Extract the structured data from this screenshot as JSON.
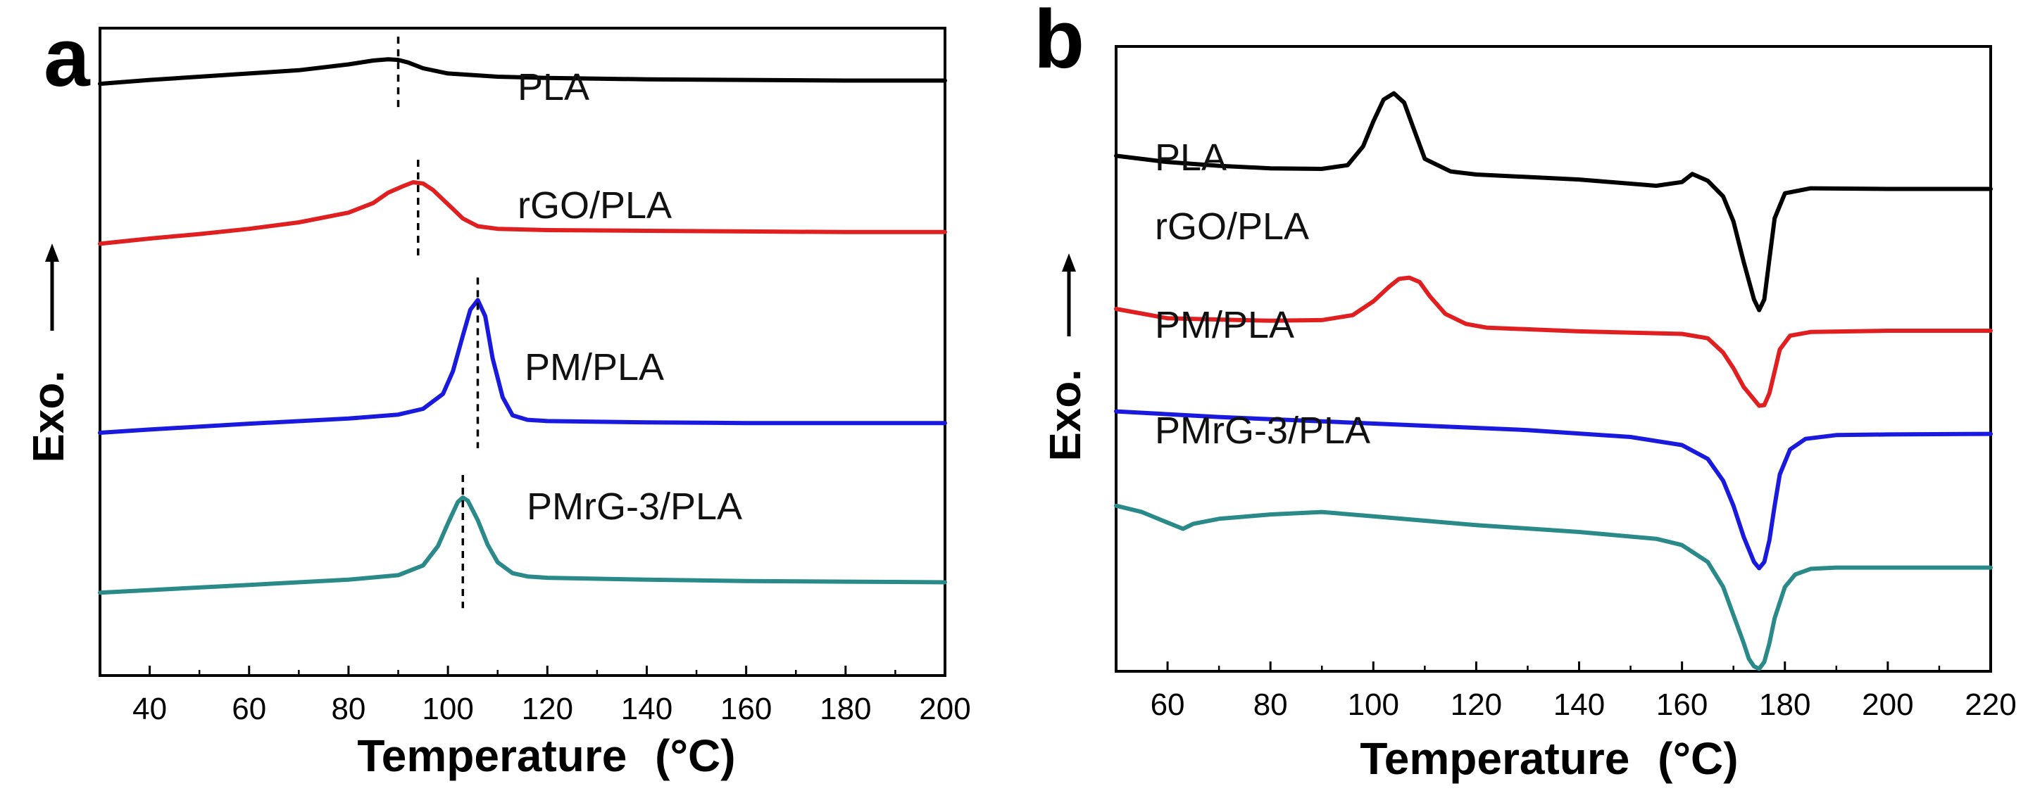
{
  "chart_data": [
    {
      "panel": "a",
      "type": "line",
      "title": "",
      "xlabel": "Temperature",
      "xlabel_unit": "(°C)",
      "ylabel": "Exo.",
      "xlim": [
        30,
        200
      ],
      "ylim": [
        0,
        100
      ],
      "xticks": [
        "40",
        "60",
        "80",
        "100",
        "120",
        "140",
        "160",
        "180",
        "200"
      ],
      "y_ticks_shown": false,
      "series": [
        {
          "name": "PLA",
          "color": "#000000",
          "x": [
            30,
            40,
            50,
            60,
            70,
            80,
            85,
            88,
            90,
            92,
            95,
            100,
            110,
            120,
            140,
            160,
            180,
            200
          ],
          "y": [
            91.4,
            92.0,
            92.5,
            93.0,
            93.5,
            94.4,
            95.0,
            95.2,
            95.1,
            94.7,
            93.8,
            93.0,
            92.5,
            92.3,
            92.1,
            92.0,
            91.9,
            91.9
          ],
          "peak_marker_x": 90
        },
        {
          "name": "rGO/PLA",
          "color": "#e02020",
          "x": [
            30,
            40,
            50,
            60,
            70,
            80,
            85,
            88,
            91,
            93,
            95,
            97,
            100,
            103,
            106,
            110,
            120,
            140,
            160,
            180,
            200
          ],
          "y": [
            66.7,
            67.5,
            68.2,
            69.0,
            70.0,
            71.5,
            73.0,
            74.6,
            75.6,
            76.2,
            76.0,
            75.0,
            72.8,
            70.6,
            69.4,
            69.0,
            68.8,
            68.7,
            68.6,
            68.5,
            68.5
          ],
          "peak_marker_x": 94
        },
        {
          "name": "PM/PLA",
          "color": "#1a1adf",
          "x": [
            30,
            40,
            60,
            80,
            90,
            95,
            99,
            101,
            103,
            104.5,
            106,
            107.5,
            109,
            111,
            113,
            116,
            120,
            140,
            160,
            180,
            200
          ],
          "y": [
            37.5,
            38.0,
            38.9,
            39.7,
            40.3,
            41.2,
            43.5,
            47.0,
            52.5,
            56.5,
            58.0,
            55.5,
            49.0,
            43.0,
            40.2,
            39.5,
            39.3,
            39.1,
            39.0,
            39.0,
            39.0
          ],
          "peak_marker_x": 106
        },
        {
          "name": "PMrG-3/PLA",
          "color": "#2a8a8a",
          "x": [
            30,
            40,
            60,
            80,
            90,
            95,
            98,
            100,
            102,
            103,
            104,
            106,
            108,
            110,
            113,
            116,
            120,
            140,
            160,
            180,
            200
          ],
          "y": [
            12.8,
            13.2,
            14.0,
            14.8,
            15.5,
            17.0,
            20.0,
            23.5,
            26.8,
            27.5,
            27.0,
            24.0,
            20.2,
            17.5,
            15.8,
            15.3,
            15.1,
            14.8,
            14.6,
            14.5,
            14.4
          ],
          "peak_marker_x": 103
        }
      ]
    },
    {
      "panel": "b",
      "type": "line",
      "title": "",
      "xlabel": "Temperature",
      "xlabel_unit": "(°C)",
      "ylabel": "Exo.",
      "xlim": [
        50,
        220
      ],
      "ylim": [
        0,
        100
      ],
      "xticks": [
        "60",
        "80",
        "100",
        "120",
        "140",
        "160",
        "180",
        "200",
        "220"
      ],
      "y_ticks_shown": false,
      "series": [
        {
          "name": "PLA",
          "color": "#000000",
          "x": [
            50,
            60,
            70,
            80,
            90,
            95,
            98,
            100,
            102,
            104,
            106,
            108,
            110,
            115,
            120,
            140,
            155,
            160,
            162,
            165,
            168,
            170,
            172,
            174,
            175,
            176,
            177,
            178,
            180,
            185,
            200,
            220
          ],
          "y": [
            82.5,
            81.5,
            80.9,
            80.5,
            80.4,
            81.0,
            84.0,
            88.0,
            91.5,
            92.5,
            91.0,
            86.5,
            82.0,
            80.0,
            79.5,
            78.7,
            77.7,
            78.3,
            79.6,
            78.5,
            76.0,
            72.0,
            65.5,
            59.5,
            57.8,
            59.5,
            66.0,
            72.5,
            76.5,
            77.3,
            77.2,
            77.2
          ]
        },
        {
          "name": "rGO/PLA",
          "color": "#e02020",
          "x": [
            50,
            60,
            70,
            80,
            90,
            96,
            100,
            103,
            105,
            107,
            109,
            111,
            114,
            118,
            122,
            140,
            160,
            165,
            168,
            170,
            172,
            174,
            175,
            176,
            177,
            178,
            179,
            181,
            185,
            200,
            220
          ],
          "y": [
            58.0,
            56.5,
            56.3,
            56.1,
            56.2,
            57.0,
            59.2,
            61.5,
            62.8,
            63.0,
            62.3,
            60.0,
            57.2,
            55.6,
            55.0,
            54.4,
            54.0,
            53.3,
            51.0,
            48.5,
            45.5,
            43.5,
            42.5,
            42.6,
            44.5,
            48.0,
            51.5,
            53.7,
            54.3,
            54.5,
            54.5
          ]
        },
        {
          "name": "PM/PLA",
          "color": "#1a1adf",
          "x": [
            50,
            70,
            90,
            110,
            130,
            150,
            160,
            165,
            168,
            170,
            172,
            174,
            175,
            176,
            177,
            178,
            179,
            181,
            184,
            190,
            200,
            220
          ],
          "y": [
            41.6,
            40.7,
            40.0,
            39.3,
            38.6,
            37.5,
            36.2,
            34.0,
            30.5,
            26.5,
            21.5,
            17.5,
            16.5,
            17.5,
            21.0,
            26.5,
            31.5,
            35.5,
            37.2,
            37.8,
            37.9,
            38.0
          ]
        },
        {
          "name": "PMrG-3/PLA",
          "color": "#2a8a8a",
          "x": [
            50,
            55,
            60,
            63,
            65,
            70,
            80,
            90,
            100,
            120,
            140,
            155,
            160,
            165,
            168,
            170,
            172,
            173,
            174,
            175,
            176,
            177,
            178,
            180,
            182,
            185,
            190,
            200,
            220
          ],
          "y": [
            26.5,
            25.5,
            23.8,
            22.8,
            23.6,
            24.4,
            25.1,
            25.5,
            24.8,
            23.4,
            22.3,
            21.2,
            20.2,
            17.5,
            13.5,
            9.0,
            4.5,
            2.0,
            0.8,
            0.4,
            1.5,
            4.5,
            8.5,
            13.5,
            15.5,
            16.4,
            16.6,
            16.6,
            16.6
          ]
        }
      ]
    }
  ]
}
